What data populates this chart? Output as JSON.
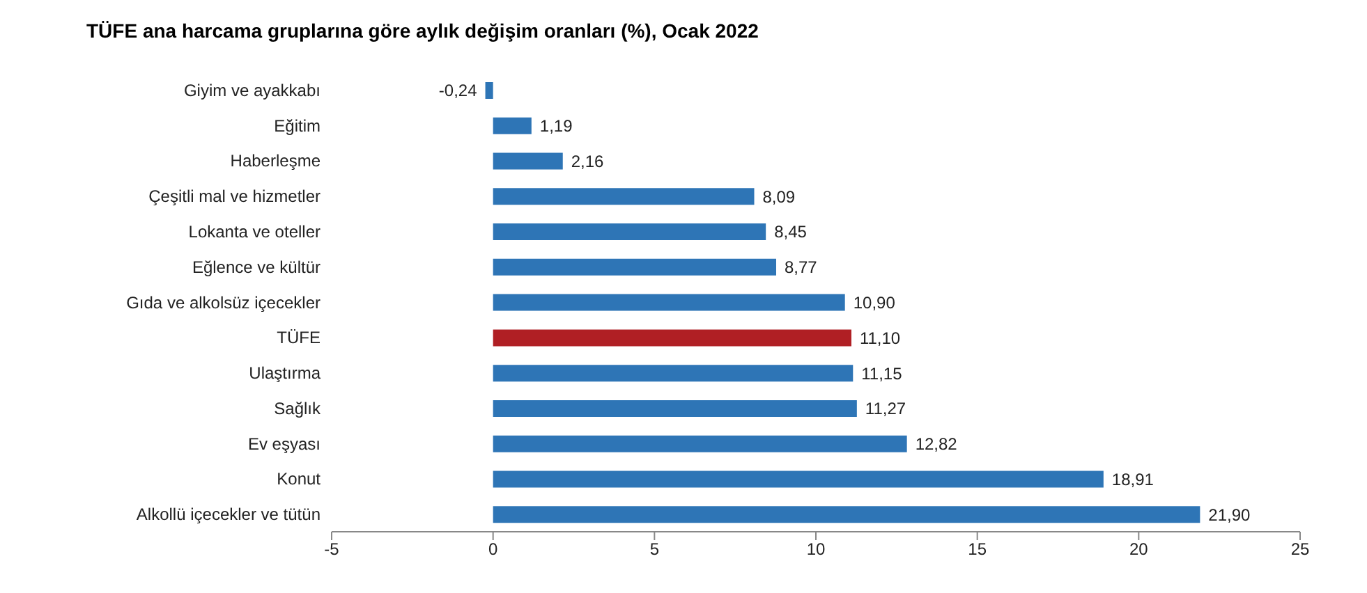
{
  "chart_data": {
    "type": "bar",
    "orientation": "horizontal",
    "title": "TÜFE ana harcama gruplarına göre aylık değişim oranları (%), Ocak 2022",
    "categories": [
      "Giyim ve ayakkabı",
      "Eğitim",
      "Haberleşme",
      "Çeşitli mal ve hizmetler",
      "Lokanta ve oteller",
      "Eğlence ve kültür",
      "Gıda ve alkolsüz içecekler",
      "TÜFE",
      "Ulaştırma",
      "Sağlık",
      "Ev eşyası",
      "Konut",
      "Alkollü içecekler ve tütün"
    ],
    "values": [
      -0.24,
      1.19,
      2.16,
      8.09,
      8.45,
      8.77,
      10.9,
      11.1,
      11.15,
      11.27,
      12.82,
      18.91,
      21.9
    ],
    "value_labels": [
      "-0,24",
      "1,19",
      "2,16",
      "8,09",
      "8,45",
      "8,77",
      "10,90",
      "11,10",
      "11,15",
      "11,27",
      "12,82",
      "18,91",
      "21,90"
    ],
    "colors": [
      "#2e75b6",
      "#2e75b6",
      "#2e75b6",
      "#2e75b6",
      "#2e75b6",
      "#2e75b6",
      "#2e75b6",
      "#b01f24",
      "#2e75b6",
      "#2e75b6",
      "#2e75b6",
      "#2e75b6",
      "#2e75b6"
    ],
    "xlim": [
      -5,
      25
    ],
    "xticks": [
      -5,
      0,
      5,
      10,
      15,
      20,
      25
    ],
    "grid": false
  }
}
